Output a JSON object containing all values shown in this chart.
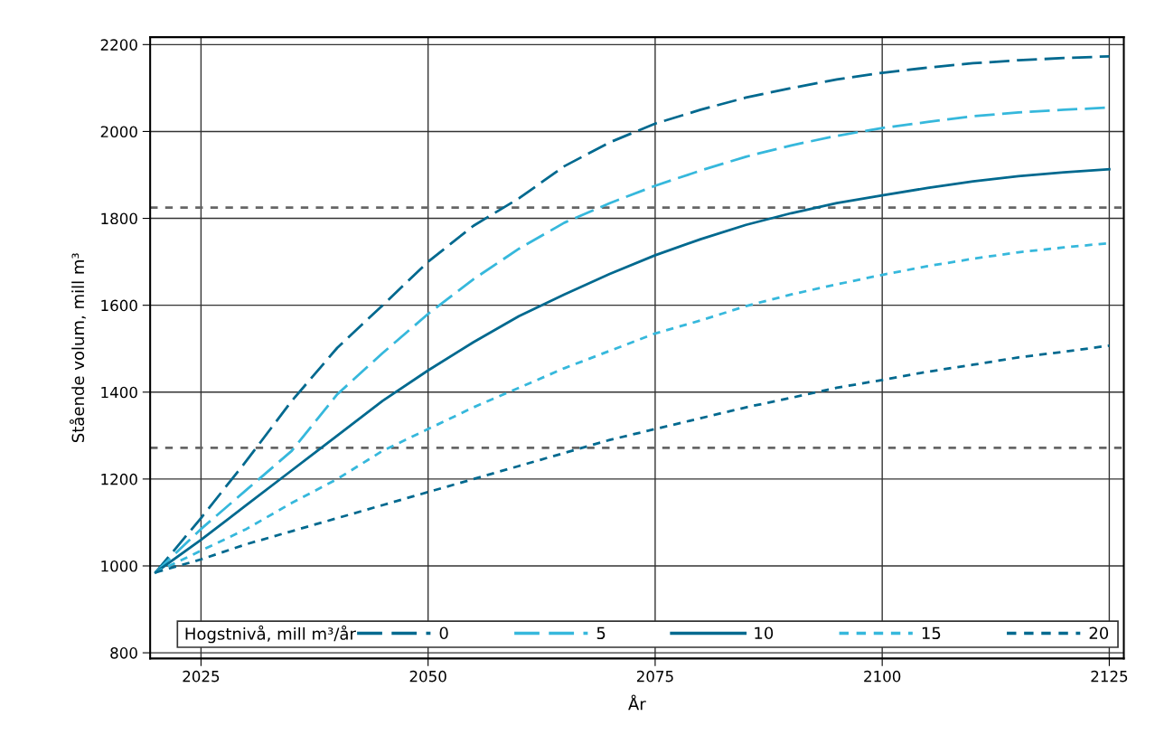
{
  "chart_data": {
    "type": "line",
    "xlabel": "År",
    "ylabel": "Stående volum, mill m³",
    "legend_title": "Hogstnivå, mill m³/år",
    "x": [
      2020,
      2025,
      2030,
      2035,
      2040,
      2045,
      2050,
      2055,
      2060,
      2065,
      2070,
      2075,
      2080,
      2085,
      2090,
      2095,
      2100,
      2105,
      2110,
      2115,
      2120,
      2125
    ],
    "series": [
      {
        "name": "0",
        "color": "#00698f",
        "line_style": "dashed",
        "values": [
          985,
          1110,
          1242,
          1380,
          1502,
          1600,
          1700,
          1783,
          1846,
          1920,
          1975,
          2018,
          2050,
          2078,
          2100,
          2120,
          2135,
          2147,
          2157,
          2164,
          2169,
          2173
        ]
      },
      {
        "name": "5",
        "color": "#36b8dc",
        "line_style": "dashed",
        "values": [
          985,
          1085,
          1175,
          1265,
          1395,
          1490,
          1580,
          1660,
          1730,
          1790,
          1835,
          1875,
          1910,
          1942,
          1968,
          1990,
          2008,
          2022,
          2035,
          2044,
          2050,
          2055
        ]
      },
      {
        "name": "10",
        "color": "#00698f",
        "line_style": "solid",
        "values": [
          985,
          1060,
          1140,
          1220,
          1300,
          1380,
          1450,
          1515,
          1575,
          1625,
          1672,
          1715,
          1752,
          1785,
          1812,
          1835,
          1853,
          1870,
          1885,
          1897,
          1906,
          1913
        ]
      },
      {
        "name": "15",
        "color": "#36b8dc",
        "line_style": "dotted",
        "values": [
          985,
          1035,
          1085,
          1145,
          1200,
          1265,
          1315,
          1365,
          1410,
          1455,
          1495,
          1535,
          1565,
          1598,
          1625,
          1648,
          1670,
          1690,
          1707,
          1722,
          1733,
          1743
        ]
      },
      {
        "name": "20",
        "color": "#00698f",
        "line_style": "dotted",
        "values": [
          985,
          1015,
          1050,
          1080,
          1110,
          1140,
          1170,
          1200,
          1230,
          1260,
          1290,
          1315,
          1340,
          1365,
          1387,
          1410,
          1428,
          1447,
          1463,
          1480,
          1493,
          1507
        ]
      }
    ],
    "ref_lines": [
      {
        "axis": "y",
        "value": 1825,
        "color": "#666666",
        "line_style": "dashed"
      },
      {
        "axis": "y",
        "value": 1272,
        "color": "#666666",
        "line_style": "dashed"
      }
    ],
    "xlim": [
      2019.4,
      2126.6
    ],
    "ylim": [
      787,
      2217
    ],
    "xticks": [
      2025,
      2050,
      2075,
      2100,
      2125
    ],
    "yticks": [
      800,
      1000,
      1200,
      1400,
      1600,
      1800,
      2000,
      2200
    ],
    "grid": true,
    "legend": "bottom"
  }
}
